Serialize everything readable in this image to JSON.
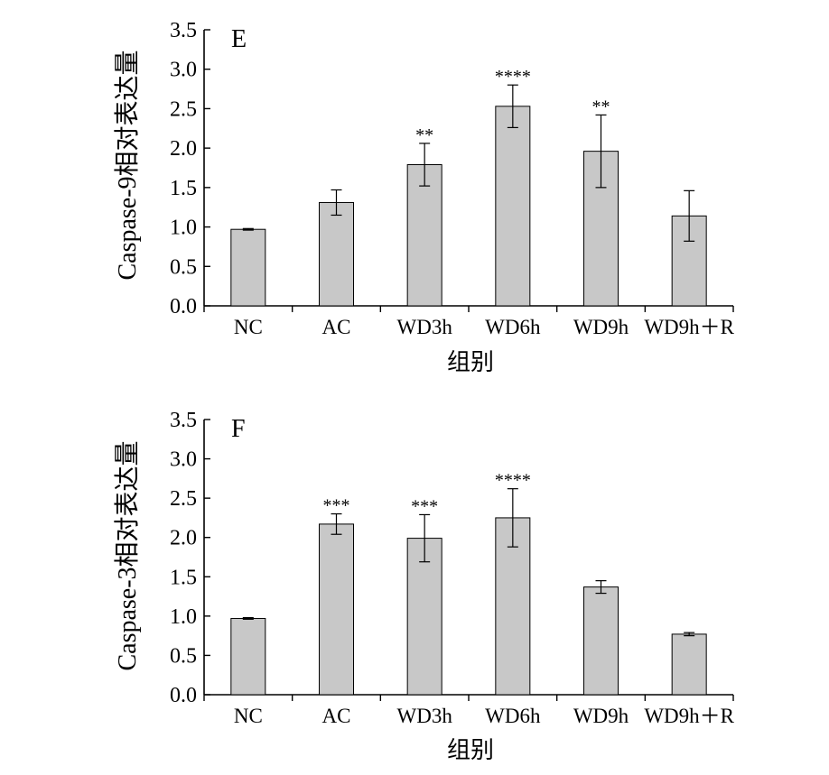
{
  "chart_data": [
    {
      "type": "bar",
      "panel_label": "E",
      "categories": [
        "NC",
        "AC",
        "WD3h",
        "WD6h",
        "WD9h",
        "WD9h＋R"
      ],
      "values": [
        0.97,
        1.31,
        1.79,
        2.53,
        1.96,
        1.14
      ],
      "errors": [
        0.01,
        0.16,
        0.27,
        0.27,
        0.46,
        0.32
      ],
      "significance": [
        "",
        "",
        "**",
        "****",
        "**",
        ""
      ],
      "xlabel": "组别",
      "ylabel": "Caspase-9相对表达量",
      "ylim": [
        0,
        3.5
      ],
      "yticks": [
        "0.0",
        "0.5",
        "1.0",
        "1.5",
        "2.0",
        "2.5",
        "3.0",
        "3.5"
      ],
      "bar_color": "#c8c8c8",
      "grid": false
    },
    {
      "type": "bar",
      "panel_label": "F",
      "categories": [
        "NC",
        "AC",
        "WD3h",
        "WD6h",
        "WD9h",
        "WD9h＋R"
      ],
      "values": [
        0.97,
        2.17,
        1.99,
        2.25,
        1.37,
        0.77
      ],
      "errors": [
        0.01,
        0.13,
        0.3,
        0.37,
        0.08,
        0.02
      ],
      "significance": [
        "",
        "***",
        "***",
        "****",
        "",
        ""
      ],
      "xlabel": "组别",
      "ylabel": "Caspase-3相对表达量",
      "ylim": [
        0,
        3.5
      ],
      "yticks": [
        "0.0",
        "0.5",
        "1.0",
        "1.5",
        "2.0",
        "2.5",
        "3.0",
        "3.5"
      ],
      "bar_color": "#c8c8c8",
      "grid": false
    }
  ]
}
